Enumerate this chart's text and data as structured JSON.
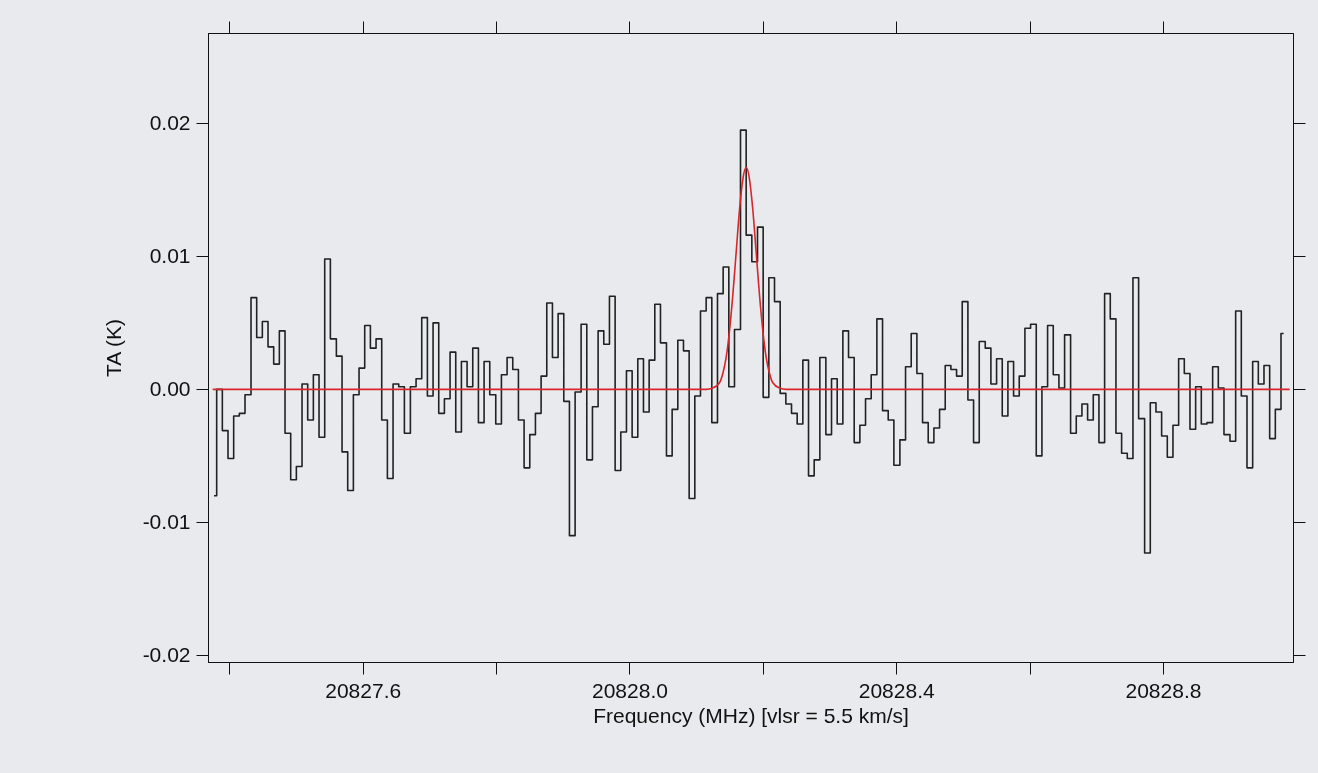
{
  "chart_data": {
    "type": "step",
    "xlabel": "Frequency (MHz) [vlsr = 5.5 km/s]",
    "ylabel": "TA (K)",
    "xlim": [
      20827.368,
      20828.995
    ],
    "ylim": [
      -0.0205,
      0.0268
    ],
    "xticks": [
      {
        "value": 20827.4,
        "label": null
      },
      20827.6,
      {
        "value": 20827.8,
        "label": null
      },
      {
        "value": 20828.0,
        "label": "20828.0"
      },
      {
        "value": 20828.2,
        "label": null
      },
      20828.4,
      {
        "value": 20828.6,
        "label": null
      },
      20828.8
    ],
    "yticks": [
      -0.02,
      -0.01,
      {
        "value": 0,
        "label": "0.00"
      },
      0.01,
      0.02
    ],
    "grid": false,
    "marker": "none",
    "line_style": "solid",
    "series": [
      {
        "type": "step",
        "color": "#222222",
        "x": [
          20827.377,
          20827.385,
          20827.394,
          20827.402,
          20827.411,
          20827.419,
          20827.428,
          20827.437,
          20827.445,
          20827.454,
          20827.462,
          20827.471,
          20827.479,
          20827.488,
          20827.496,
          20827.505,
          20827.513,
          20827.522,
          20827.53,
          20827.539,
          20827.547,
          20827.556,
          20827.565,
          20827.573,
          20827.582,
          20827.59,
          20827.599,
          20827.607,
          20827.616,
          20827.624,
          20827.633,
          20827.641,
          20827.65,
          20827.658,
          20827.667,
          20827.676,
          20827.684,
          20827.693,
          20827.701,
          20827.71,
          20827.718,
          20827.727,
          20827.735,
          20827.744,
          20827.752,
          20827.761,
          20827.769,
          20827.778,
          20827.786,
          20827.795,
          20827.804,
          20827.812,
          20827.821,
          20827.829,
          20827.838,
          20827.846,
          20827.855,
          20827.863,
          20827.872,
          20827.88,
          20827.889,
          20827.897,
          20827.906,
          20827.914,
          20827.923,
          20827.932,
          20827.94,
          20827.949,
          20827.957,
          20827.966,
          20827.974,
          20827.983,
          20827.991,
          20828.0,
          20828.008,
          20828.017,
          20828.025,
          20828.034,
          20828.042,
          20828.051,
          20828.06,
          20828.068,
          20828.077,
          20828.085,
          20828.094,
          20828.102,
          20828.111,
          20828.119,
          20828.128,
          20828.136,
          20828.145,
          20828.153,
          20828.162,
          20828.171,
          20828.179,
          20828.188,
          20828.196,
          20828.205,
          20828.213,
          20828.222,
          20828.23,
          20828.239,
          20828.247,
          20828.256,
          20828.264,
          20828.273,
          20828.281,
          20828.29,
          20828.299,
          20828.307,
          20828.316,
          20828.324,
          20828.333,
          20828.341,
          20828.35,
          20828.358,
          20828.367,
          20828.375,
          20828.384,
          20828.392,
          20828.401,
          20828.41,
          20828.418,
          20828.427,
          20828.435,
          20828.444,
          20828.452,
          20828.461,
          20828.469,
          20828.478,
          20828.486,
          20828.495,
          20828.503,
          20828.512,
          20828.52,
          20828.529,
          20828.538,
          20828.546,
          20828.555,
          20828.563,
          20828.572,
          20828.58,
          20828.589,
          20828.597,
          20828.606,
          20828.614,
          20828.623,
          20828.631,
          20828.64,
          20828.648,
          20828.657,
          20828.666,
          20828.674,
          20828.683,
          20828.691,
          20828.7,
          20828.708,
          20828.717,
          20828.725,
          20828.734,
          20828.742,
          20828.751,
          20828.759,
          20828.768,
          20828.777,
          20828.785,
          20828.794,
          20828.802,
          20828.811,
          20828.819,
          20828.828,
          20828.836,
          20828.845,
          20828.853,
          20828.862,
          20828.87,
          20828.879,
          20828.887,
          20828.896,
          20828.905,
          20828.913,
          20828.922,
          20828.93,
          20828.939,
          20828.947,
          20828.956,
          20828.964,
          20828.973,
          20828.981
        ],
        "values": [
          -0.008,
          0,
          -0.0031,
          -0.0052,
          -0.002,
          -0.0018,
          -0.0004,
          0.0069,
          0.0039,
          0.0051,
          0.0032,
          0.0019,
          0.0044,
          -0.0033,
          -0.0068,
          -0.0058,
          0.0004,
          -0.0023,
          0.0011,
          -0.0036,
          0.0098,
          0.0038,
          0.0025,
          -0.0047,
          -0.0076,
          -0.0004,
          0.0016,
          0.0048,
          0.0031,
          0.0038,
          -0.0023,
          -0.0067,
          0.0004,
          0.0002,
          -0.0033,
          0.0002,
          0.0008,
          0.0054,
          -0.0005,
          0.005,
          -0.0018,
          -0.0007,
          0.0028,
          -0.0032,
          0.0021,
          0.0002,
          0.0031,
          -0.0025,
          0.0021,
          -0.0004,
          -0.0026,
          0.0011,
          0.0024,
          0.0015,
          -0.0023,
          -0.0059,
          -0.0034,
          -0.0018,
          0.001,
          0.0065,
          0.0024,
          0.0057,
          -0.0009,
          -0.011,
          -0.0002,
          0.0049,
          -0.0053,
          -0.0013,
          0.0044,
          0.0034,
          0.007,
          -0.0061,
          -0.0032,
          0.0014,
          -0.0036,
          0.0023,
          -0.0017,
          0.0022,
          0.0064,
          0.0035,
          -0.005,
          -0.0015,
          0.0037,
          0.0029,
          -0.0082,
          -0.0005,
          0.0059,
          0.0069,
          -0.0025,
          0.0072,
          0.0092,
          0.0002,
          0.0045,
          0.0195,
          0.0116,
          0.0096,
          0.0122,
          -0.0006,
          0.0084,
          0.0066,
          -0.0003,
          -0.0011,
          -0.0018,
          -0.0026,
          0.0022,
          -0.0065,
          -0.0053,
          0.0024,
          -0.0034,
          0.0008,
          -0.0026,
          0.0044,
          0.0024,
          -0.004,
          -0.0027,
          -0.0007,
          0.0011,
          0.0053,
          -0.0016,
          -0.0023,
          -0.0057,
          -0.0038,
          0.0017,
          0.0042,
          0.0012,
          -0.0025,
          -0.004,
          -0.0029,
          -0.0015,
          0.0018,
          0.0015,
          0.001,
          0.0066,
          -0.0008,
          -0.004,
          0.0036,
          0.0031,
          0.0004,
          0.0023,
          -0.002,
          0.0021,
          -0.0005,
          0.001,
          0.0046,
          0.0049,
          -0.005,
          0.0002,
          0.0048,
          0.0011,
          0.0001,
          0.0041,
          -0.0033,
          -0.002,
          -0.0011,
          -0.0023,
          -0.0004,
          -0.004,
          0.0072,
          0.0053,
          -0.0033,
          -0.0048,
          -0.0052,
          0.0084,
          -0.0022,
          -0.0123,
          -0.001,
          -0.0017,
          -0.0035,
          -0.0051,
          -0.0027,
          0.0023,
          0.0012,
          -0.003,
          0.0002,
          -0.0026,
          -0.0025,
          0.0017,
          0.0001,
          -0.0034,
          -0.0039,
          0.0059,
          -0.0005,
          -0.0059,
          0.0021,
          0.0004,
          0.0018,
          -0.0037,
          -0.0015,
          0.0042
        ]
      },
      {
        "type": "line",
        "color": "#d9262c",
        "x": [
          20827.375,
          20828.115,
          20828.125,
          20828.135,
          20828.14,
          20828.145,
          20828.15,
          20828.155,
          20828.16,
          20828.165,
          20828.17,
          20828.175,
          20828.18,
          20828.185,
          20828.19,
          20828.195,
          20828.2,
          20828.205,
          20828.21,
          20828.215,
          20828.225,
          20828.235,
          20828.99
        ],
        "values": [
          0,
          0,
          0.0001,
          0.0005,
          0.0012,
          0.0024,
          0.0044,
          0.0071,
          0.0103,
          0.0135,
          0.0158,
          0.0167,
          0.0158,
          0.0135,
          0.0103,
          0.0071,
          0.0044,
          0.0024,
          0.0012,
          0.0005,
          0.0001,
          0,
          0
        ]
      }
    ]
  }
}
